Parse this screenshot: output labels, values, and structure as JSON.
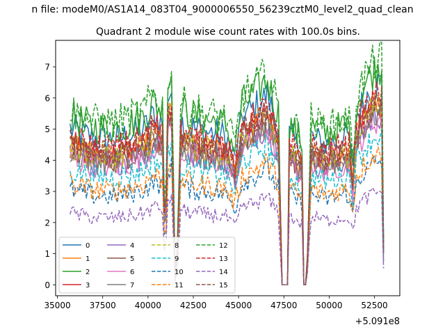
{
  "chart_data": {
    "type": "line",
    "suptitle": "n file: modeM0/AS1A14_083T04_9000006550_56239cztM0_level2_quad_clean",
    "title": "Quadrant 2 module wise count rates with 100.0s bins.",
    "xlabel": "",
    "ylabel": "",
    "offset_text": "+5.091e8",
    "xlim": [
      34900,
      53900
    ],
    "ylim": [
      -0.35,
      7.85
    ],
    "xticks": [
      35000,
      37500,
      40000,
      42500,
      45000,
      47500,
      50000,
      52500
    ],
    "xtick_labels": [
      "35000",
      "37500",
      "40000",
      "42500",
      "45000",
      "47500",
      "50000",
      "52500"
    ],
    "yticks": [
      0,
      1,
      2,
      3,
      4,
      5,
      6,
      7
    ],
    "ytick_labels": [
      "0",
      "1",
      "2",
      "3",
      "4",
      "5",
      "6",
      "7"
    ],
    "legend": {
      "location": "lower-left",
      "ncol": 4
    },
    "profile": {
      "x": [
        35700,
        36300,
        37000,
        38000,
        39000,
        39800,
        40300,
        40800,
        40950,
        41100,
        41300,
        41500,
        41650,
        41800,
        42100,
        42600,
        43200,
        43800,
        44300,
        44800,
        45200,
        45800,
        46600,
        46900,
        47200,
        47400,
        47500,
        47550,
        47700,
        47750,
        47800,
        48000,
        48300,
        48500,
        48600,
        48650,
        48750,
        48850,
        49000,
        49400,
        49900,
        50500,
        51100,
        51300,
        51500,
        52000,
        52500,
        52900,
        53000
      ],
      "y": [
        1.0,
        0.97,
        0.94,
        0.93,
        0.96,
        1.0,
        1.09,
        1.04,
        0.25,
        1.2,
        1.25,
        0.05,
        0.28,
        1.05,
        1.02,
        1.0,
        0.98,
        0.97,
        0.95,
        0.8,
        1.08,
        1.13,
        1.22,
        1.1,
        1.02,
        0.0,
        0.0,
        0.0,
        0.0,
        0.6,
        0.95,
        0.93,
        0.88,
        0.85,
        0.0,
        0.0,
        0.0,
        0.35,
        0.95,
        0.92,
        0.9,
        0.93,
        0.95,
        0.72,
        1.08,
        1.2,
        1.28,
        1.3,
        0.25
      ]
    },
    "series": [
      {
        "name": "0",
        "level": 5.0,
        "color": "#1f77b4",
        "style": "solid"
      },
      {
        "name": "1",
        "level": 4.4,
        "color": "#ff7f0e",
        "style": "solid"
      },
      {
        "name": "2",
        "level": 5.4,
        "color": "#2ca02c",
        "style": "solid"
      },
      {
        "name": "3",
        "level": 4.5,
        "color": "#d62728",
        "style": "solid"
      },
      {
        "name": "4",
        "level": 4.2,
        "color": "#9467bd",
        "style": "solid"
      },
      {
        "name": "5",
        "level": 4.35,
        "color": "#8c564b",
        "style": "solid"
      },
      {
        "name": "6",
        "level": 4.1,
        "color": "#e377c2",
        "style": "solid"
      },
      {
        "name": "7",
        "level": 4.25,
        "color": "#7f7f7f",
        "style": "solid"
      },
      {
        "name": "8",
        "level": 4.45,
        "color": "#bcbd22",
        "style": "dashed"
      },
      {
        "name": "9",
        "level": 3.7,
        "color": "#17becf",
        "style": "dashed"
      },
      {
        "name": "10",
        "level": 3.05,
        "color": "#1f77b4",
        "style": "dashed"
      },
      {
        "name": "11",
        "level": 3.25,
        "color": "#ff7f0e",
        "style": "dashed"
      },
      {
        "name": "12",
        "level": 5.6,
        "color": "#2ca02c",
        "style": "dashed"
      },
      {
        "name": "13",
        "level": 4.7,
        "color": "#d62728",
        "style": "dashed"
      },
      {
        "name": "14",
        "level": 2.3,
        "color": "#9467bd",
        "style": "dashed"
      },
      {
        "name": "15",
        "level": 4.55,
        "color": "#8c564b",
        "style": "dashed"
      }
    ]
  }
}
